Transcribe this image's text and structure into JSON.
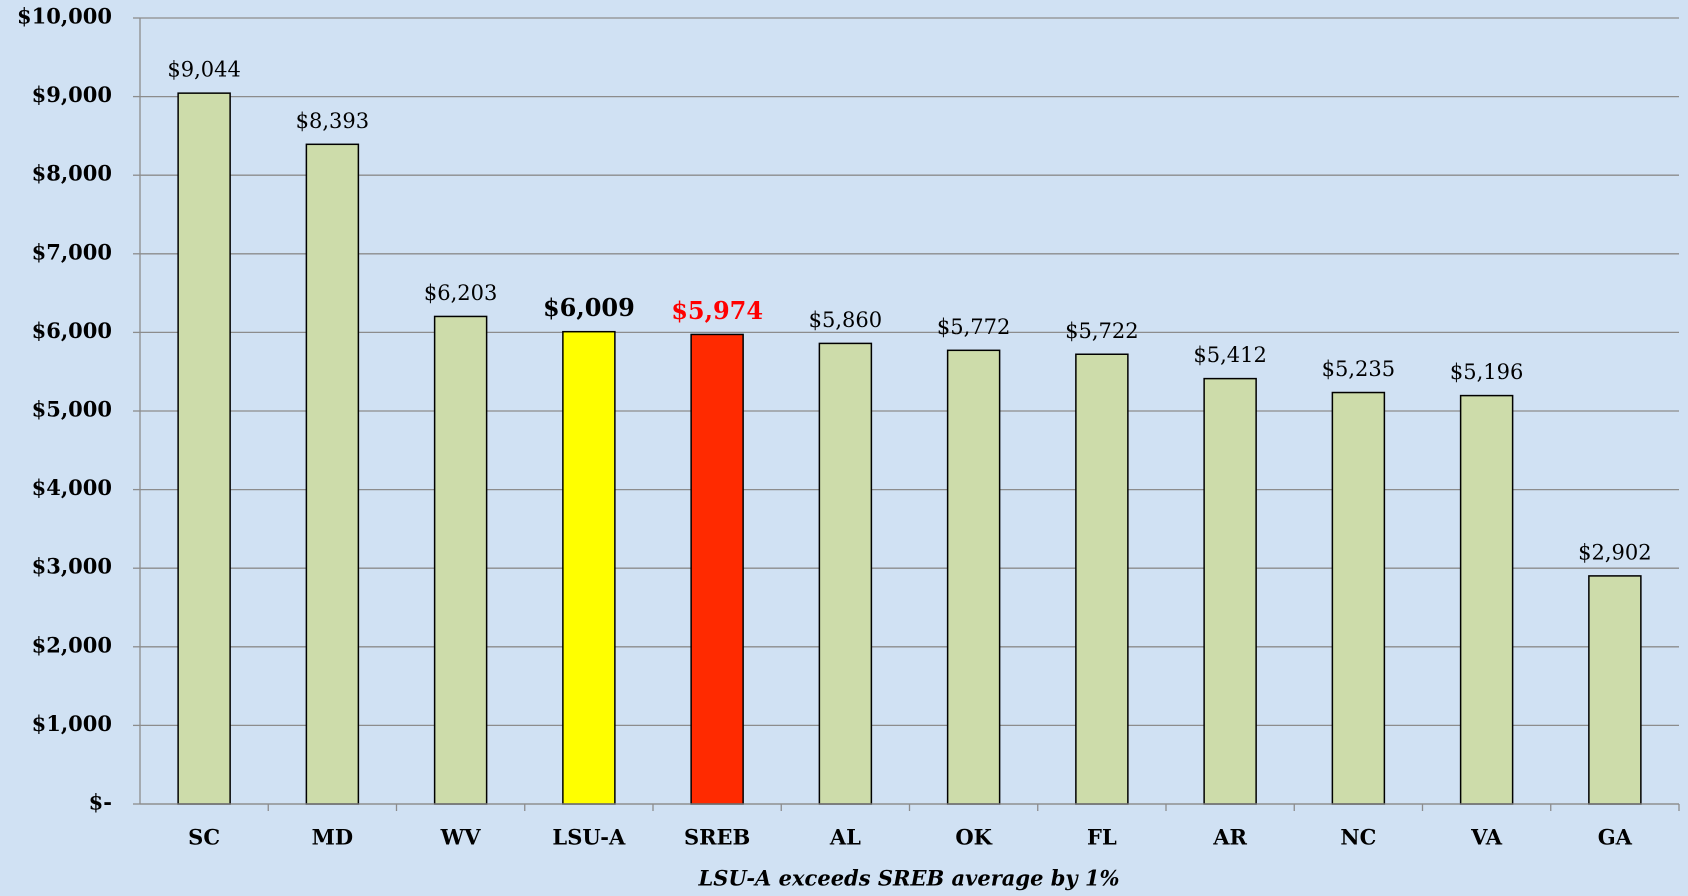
{
  "chart_data": {
    "type": "bar",
    "categories": [
      "SC",
      "MD",
      "WV",
      "LSU-A",
      "SREB",
      "AL",
      "OK",
      "FL",
      "AR",
      "NC",
      "VA",
      "GA"
    ],
    "values": [
      9044,
      8393,
      6203,
      6009,
      5974,
      5860,
      5772,
      5722,
      5412,
      5235,
      5196,
      2902
    ],
    "value_labels": [
      "$9,044",
      "$8,393",
      "$6,203",
      "$6,009",
      "$5,974",
      "$5,860",
      "$5,772",
      "$5,722",
      "$5,412",
      "$5,235",
      "$5,196",
      "$2,902"
    ],
    "colors": [
      "#cddcaa",
      "#cddcaa",
      "#cddcaa",
      "#ffff00",
      "#ff2a00",
      "#cddcaa",
      "#cddcaa",
      "#cddcaa",
      "#cddcaa",
      "#cddcaa",
      "#cddcaa",
      "#cddcaa"
    ],
    "label_colors": [
      "#000000",
      "#000000",
      "#000000",
      "#000000",
      "#ff0000",
      "#000000",
      "#000000",
      "#000000",
      "#000000",
      "#000000",
      "#000000",
      "#000000"
    ],
    "label_bold": [
      false,
      false,
      false,
      true,
      true,
      false,
      false,
      false,
      false,
      false,
      false,
      false
    ],
    "x_label": "LSU-A exceeds SREB average by 1%",
    "ylim": [
      0,
      10000
    ],
    "yticks": [
      {
        "value": 0,
        "label": "$-"
      },
      {
        "value": 1000,
        "label": "$1,000"
      },
      {
        "value": 2000,
        "label": "$2,000"
      },
      {
        "value": 3000,
        "label": "$3,000"
      },
      {
        "value": 4000,
        "label": "$4,000"
      },
      {
        "value": 5000,
        "label": "$5,000"
      },
      {
        "value": 6000,
        "label": "$6,000"
      },
      {
        "value": 7000,
        "label": "$7,000"
      },
      {
        "value": 8000,
        "label": "$8,000"
      },
      {
        "value": 9000,
        "label": "$9,000"
      },
      {
        "value": 10000,
        "label": "$10,000"
      }
    ],
    "grid": true
  }
}
